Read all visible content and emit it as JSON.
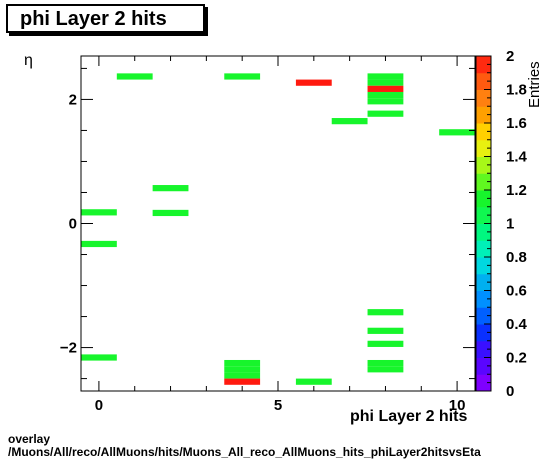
{
  "title": "phi Layer 2 hits",
  "chart_data": {
    "type": "heatmap",
    "title": "phi Layer 2 hits",
    "xlabel": "phi Layer 2 hits",
    "ylabel": "η",
    "zlabel": "Entries",
    "xlim": [
      -0.5,
      10.5
    ],
    "ylim": [
      -2.7,
      2.7
    ],
    "zlim": [
      0,
      2
    ],
    "x_ticks": [
      0,
      5,
      10
    ],
    "y_ticks": [
      -2,
      0,
      2
    ],
    "z_ticks": [
      "0",
      "0.2",
      "0.4",
      "0.6",
      "0.8",
      "1",
      "1.2",
      "1.4",
      "1.6",
      "1.8",
      "2"
    ],
    "cell_height": 0.1,
    "cells": [
      {
        "x": 0,
        "y": 0.18,
        "z": 1
      },
      {
        "x": 0,
        "y": -0.33,
        "z": 1
      },
      {
        "x": 0,
        "y": -2.16,
        "z": 1
      },
      {
        "x": 1,
        "y": 2.37,
        "z": 1
      },
      {
        "x": 2,
        "y": 0.57,
        "z": 1
      },
      {
        "x": 2,
        "y": 0.17,
        "z": 1
      },
      {
        "x": 4,
        "y": 2.37,
        "z": 1
      },
      {
        "x": 4,
        "y": -2.25,
        "z": 1
      },
      {
        "x": 4,
        "y": -2.35,
        "z": 1
      },
      {
        "x": 4,
        "y": -2.45,
        "z": 1
      },
      {
        "x": 4,
        "y": -2.55,
        "z": 2
      },
      {
        "x": 6,
        "y": 2.27,
        "z": 2
      },
      {
        "x": 6,
        "y": -2.55,
        "z": 1
      },
      {
        "x": 7,
        "y": 1.65,
        "z": 1
      },
      {
        "x": 8,
        "y": 2.37,
        "z": 1
      },
      {
        "x": 8,
        "y": 2.27,
        "z": 1
      },
      {
        "x": 8,
        "y": 2.17,
        "z": 2
      },
      {
        "x": 8,
        "y": 2.07,
        "z": 1
      },
      {
        "x": 8,
        "y": 1.97,
        "z": 1
      },
      {
        "x": 8,
        "y": 1.77,
        "z": 1
      },
      {
        "x": 8,
        "y": -1.43,
        "z": 1
      },
      {
        "x": 8,
        "y": -1.73,
        "z": 1
      },
      {
        "x": 8,
        "y": -1.94,
        "z": 1
      },
      {
        "x": 8,
        "y": -2.25,
        "z": 1
      },
      {
        "x": 8,
        "y": -2.35,
        "z": 1
      },
      {
        "x": 10,
        "y": 1.47,
        "z": 1
      }
    ],
    "colors": {
      "z1": "#17f52c",
      "z2": "#ff1a0f",
      "frame": "#000000",
      "palette": [
        "#7f00ff",
        "#5a05ff",
        "#3a10ff",
        "#0a30ff",
        "#0060ff",
        "#0090ff",
        "#00b0f0",
        "#00d8e0",
        "#00f0b8",
        "#00f880",
        "#10f850",
        "#17f52c",
        "#60f820",
        "#a8f818",
        "#e8f010",
        "#ffd000",
        "#ffa000",
        "#ff8010",
        "#ff5a10",
        "#ff2a10"
      ]
    }
  },
  "footer": {
    "line1": "overlay",
    "line2": "/Muons/All/reco/AllMuons/hits/Muons_All_reco_AllMuons_hits_phiLayer2hitsvsEta"
  }
}
